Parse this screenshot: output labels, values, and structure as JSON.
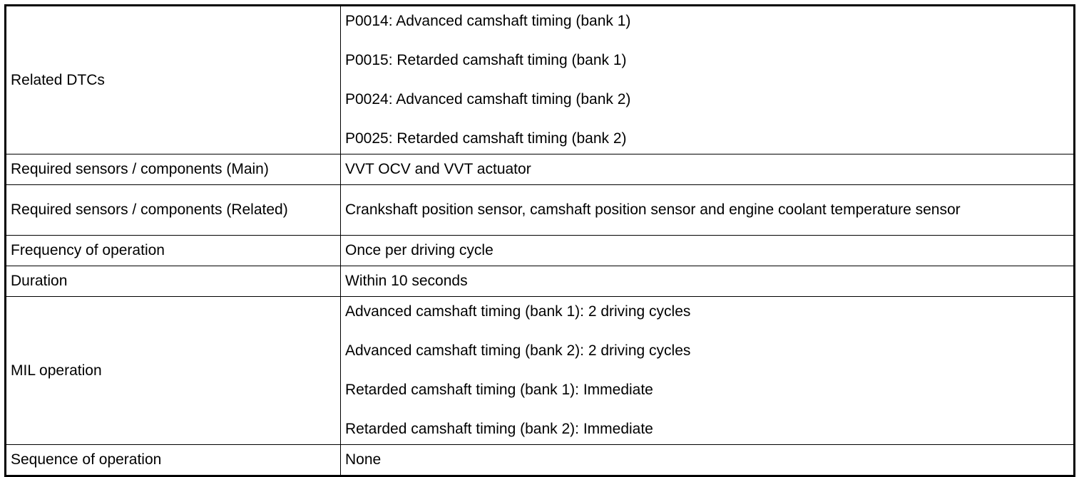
{
  "rows": [
    {
      "label": "Related DTCs",
      "values": [
        "P0014: Advanced camshaft timing (bank 1)",
        "P0015: Retarded camshaft timing (bank 1)",
        "P0024: Advanced camshaft timing (bank 2)",
        "P0025: Retarded camshaft timing (bank 2)"
      ]
    },
    {
      "label": "Required sensors / components (Main)",
      "values": [
        "VVT OCV and VVT actuator"
      ]
    },
    {
      "label": "Required sensors / components (Related)",
      "values": [
        "Crankshaft position sensor, camshaft position sensor and engine coolant temperature sensor"
      ]
    },
    {
      "label": "Frequency of operation",
      "values": [
        "Once per driving cycle"
      ]
    },
    {
      "label": "Duration",
      "values": [
        "Within 10 seconds"
      ]
    },
    {
      "label": "MIL operation",
      "values": [
        "Advanced camshaft timing (bank 1): 2 driving cycles",
        "Advanced camshaft timing (bank 2): 2 driving cycles",
        "Retarded camshaft timing (bank 1): Immediate",
        "Retarded camshaft timing (bank 2): Immediate"
      ]
    },
    {
      "label": "Sequence of operation",
      "values": [
        "None"
      ]
    }
  ]
}
